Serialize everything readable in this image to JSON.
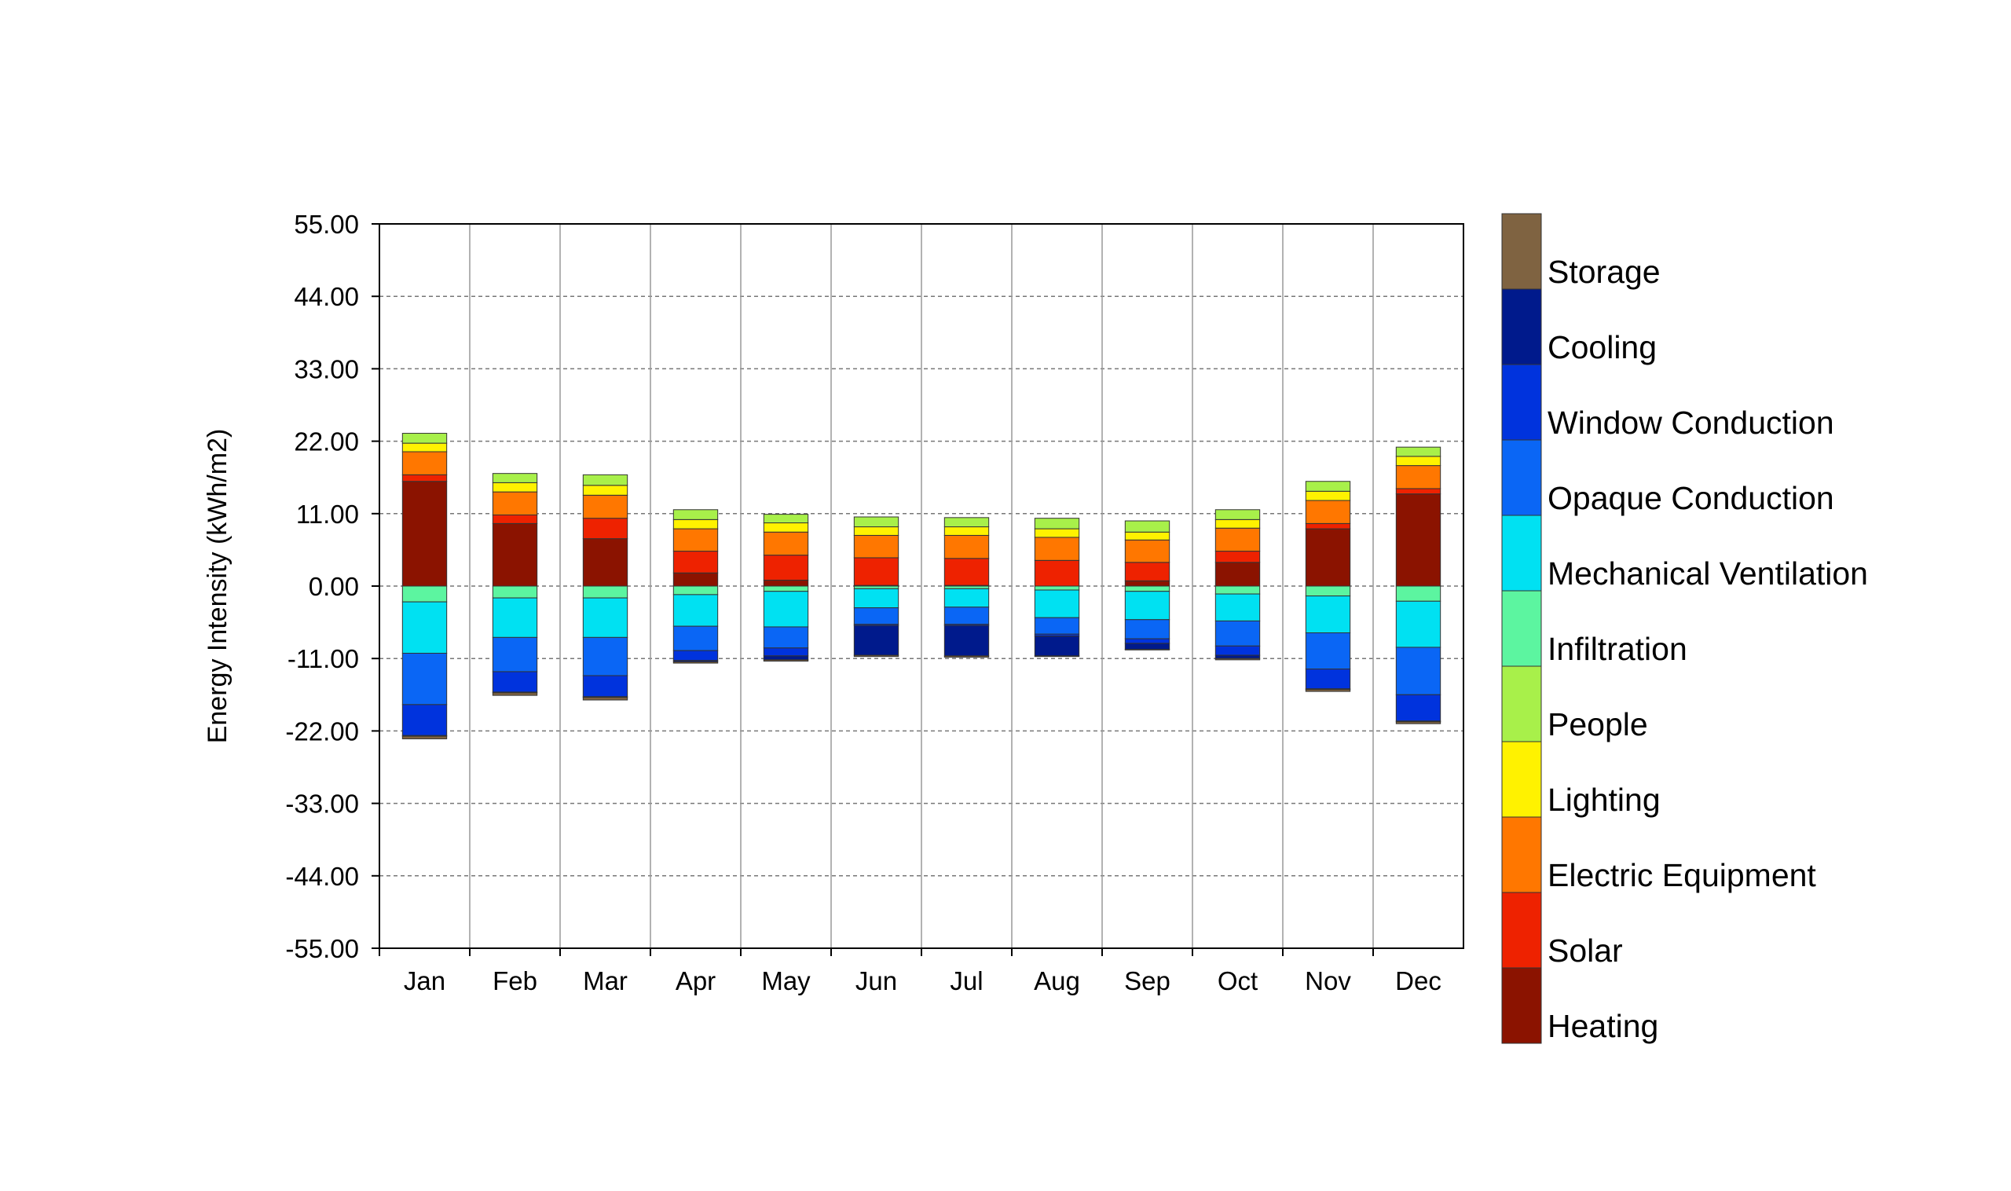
{
  "chart_data": {
    "type": "bar",
    "stacked": true,
    "title": "",
    "xlabel": "",
    "ylabel": "Energy Intensity (kWh/m2)",
    "ylim": [
      -55,
      55
    ],
    "yticks": [
      "55.00",
      "44.00",
      "33.00",
      "22.00",
      "11.00",
      "0.00",
      "-11.00",
      "-22.00",
      "-33.00",
      "-44.00",
      "-55.00"
    ],
    "grid": "horizontal dashed, vertical solid",
    "legend_position": "right",
    "categories": [
      "Jan",
      "Feb",
      "Mar",
      "Apr",
      "May",
      "Jun",
      "Jul",
      "Aug",
      "Sep",
      "Oct",
      "Nov",
      "Dec"
    ],
    "series": [
      {
        "name": "Heating",
        "color": "#8B1300",
        "values": [
          15.9,
          9.5,
          7.2,
          2.0,
          0.9,
          0.1,
          0.1,
          0.0,
          0.8,
          3.6,
          8.7,
          14.0
        ]
      },
      {
        "name": "Solar",
        "color": "#EE2200",
        "values": [
          1.0,
          1.3,
          3.1,
          3.3,
          3.8,
          4.2,
          4.1,
          3.9,
          2.8,
          1.7,
          0.8,
          0.8
        ]
      },
      {
        "name": "Electric Equipment",
        "color": "#FF7700",
        "values": [
          3.5,
          3.5,
          3.5,
          3.4,
          3.5,
          3.4,
          3.5,
          3.5,
          3.4,
          3.5,
          3.5,
          3.5
        ]
      },
      {
        "name": "Lighting",
        "color": "#FFF200",
        "values": [
          1.3,
          1.4,
          1.5,
          1.4,
          1.4,
          1.3,
          1.3,
          1.3,
          1.2,
          1.3,
          1.4,
          1.4
        ]
      },
      {
        "name": "People",
        "color": "#A8F04A",
        "values": [
          1.5,
          1.4,
          1.6,
          1.5,
          1.3,
          1.5,
          1.4,
          1.6,
          1.7,
          1.5,
          1.5,
          1.4
        ]
      },
      {
        "name": "Infiltration",
        "color": "#5CF5A0",
        "values": [
          -2.4,
          -1.8,
          -1.8,
          -1.3,
          -0.8,
          -0.4,
          -0.4,
          -0.6,
          -0.8,
          -1.2,
          -1.5,
          -2.3
        ]
      },
      {
        "name": "Mechanical Ventilation",
        "color": "#00E1F2",
        "values": [
          -7.8,
          -6.0,
          -6.0,
          -4.8,
          -5.4,
          -2.9,
          -2.8,
          -4.2,
          -4.3,
          -4.1,
          -5.6,
          -7.0
        ]
      },
      {
        "name": "Opaque Conduction",
        "color": "#0A66F5",
        "values": [
          -7.8,
          -5.2,
          -5.8,
          -3.7,
          -3.2,
          -2.5,
          -2.6,
          -2.5,
          -2.9,
          -3.8,
          -5.5,
          -7.2
        ]
      },
      {
        "name": "Window Conduction",
        "color": "#0033DD",
        "values": [
          -4.7,
          -3.1,
          -3.2,
          -1.5,
          -1.2,
          -0.2,
          -0.2,
          -0.3,
          -0.7,
          -1.4,
          -3.0,
          -4.0
        ]
      },
      {
        "name": "Cooling",
        "color": "#001A8C",
        "values": [
          -0.1,
          -0.1,
          -0.1,
          -0.2,
          -0.6,
          -4.5,
          -4.6,
          -3.0,
          -0.9,
          -0.5,
          -0.1,
          -0.1
        ]
      },
      {
        "name": "Storage",
        "color": "#7F6341",
        "values": [
          -0.4,
          -0.4,
          -0.4,
          -0.2,
          -0.2,
          -0.2,
          -0.2,
          -0.1,
          -0.1,
          -0.2,
          -0.3,
          -0.3
        ]
      }
    ],
    "legend_order": [
      "Storage",
      "Cooling",
      "Window Conduction",
      "Opaque Conduction",
      "Mechanical Ventilation",
      "Infiltration",
      "People",
      "Lighting",
      "Electric Equipment",
      "Solar",
      "Heating"
    ]
  }
}
